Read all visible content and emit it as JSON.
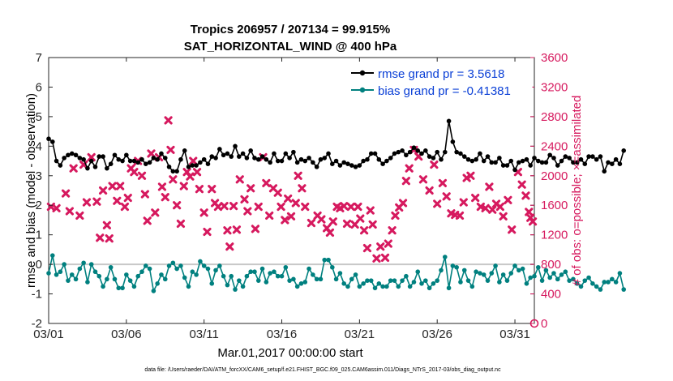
{
  "chart_data": {
    "type": "line",
    "title_line1": "Tropics 206957 / 207134 = 99.915%",
    "title_line2": "SAT_HORIZONTAL_WIND @ 400 hPa",
    "xlabel": "Mar.01,2017 00:00:00 start",
    "ylabel_left": "rmse and bias (model - observation)",
    "ylabel_right": "# of obs: o=possible; ×=assimilated",
    "footnote": "data file: /Users/raeder/DAI/ATM_forcXX/CAM6_setup/f.e21.FHIST_BGC.f09_025.CAM6assim.011/Diags_NTrS_2017-03/obs_diag_output.nc",
    "x_ticks": [
      "03/01",
      "03/06",
      "03/11",
      "03/16",
      "03/21",
      "03/26",
      "03/31"
    ],
    "x_tick_days": [
      0,
      5,
      10,
      15,
      20,
      25,
      30
    ],
    "xlim": [
      0,
      31.25
    ],
    "ylim_left": [
      -2,
      7
    ],
    "y_ticks_left": [
      "-2",
      "-1",
      "0",
      "1",
      "2",
      "3",
      "4",
      "5",
      "6",
      "7"
    ],
    "ylim_right": [
      0,
      3600
    ],
    "y_ticks_right": [
      "0",
      "400",
      "800",
      "1200",
      "1600",
      "2000",
      "2400",
      "2800",
      "3200",
      "3600"
    ],
    "colors": {
      "rmse": "#000000",
      "bias": "#00807f",
      "obs": "#d6195e",
      "legend_text": "#0a3fd6",
      "zero_line": "#c8c8c8"
    },
    "series": [
      {
        "name": "rmse grand pr = 3.5618",
        "axis": "left",
        "x_step": 0.25,
        "values": [
          4.25,
          4.15,
          3.5,
          3.35,
          3.6,
          3.7,
          3.75,
          3.7,
          3.6,
          3.55,
          3.25,
          3.5,
          3.3,
          3.65,
          3.65,
          3.25,
          3.4,
          3.7,
          3.55,
          3.5,
          3.7,
          3.5,
          3.5,
          3.45,
          3.55,
          3.4,
          3.45,
          3.6,
          3.55,
          3.75,
          3.6,
          3.3,
          3.15,
          3.15,
          3.55,
          3.85,
          3.3,
          3.35,
          3.35,
          3.45,
          3.55,
          3.4,
          3.65,
          3.6,
          3.9,
          3.7,
          3.75,
          3.65,
          4.0,
          3.65,
          3.75,
          3.6,
          3.85,
          3.6,
          3.55,
          3.65,
          3.55,
          3.45,
          3.75,
          3.5,
          3.5,
          3.75,
          3.6,
          3.8,
          3.45,
          3.55,
          3.5,
          3.6,
          3.45,
          3.3,
          3.55,
          3.6,
          3.75,
          3.4,
          3.5,
          3.35,
          3.45,
          3.4,
          3.35,
          3.3,
          3.35,
          3.5,
          3.55,
          3.75,
          3.75,
          3.55,
          3.4,
          3.5,
          3.6,
          3.75,
          3.8,
          3.85,
          3.7,
          3.8,
          3.95,
          3.85,
          3.75,
          3.85,
          3.65,
          3.6,
          3.8,
          3.55,
          3.8,
          4.85,
          4.15,
          3.8,
          3.75,
          3.65,
          3.55,
          3.5,
          3.55,
          3.75,
          3.5,
          3.65,
          3.45,
          3.45,
          3.6,
          3.35,
          3.35,
          3.5,
          3.2,
          3.45,
          3.5,
          3.55,
          3.35,
          3.6,
          3.5,
          3.45,
          3.45,
          3.7,
          3.6,
          3.35,
          3.5,
          3.65,
          3.6,
          3.45,
          3.45,
          3.55,
          3.4,
          3.65,
          3.65,
          3.55,
          3.65,
          3.15,
          3.45,
          3.4,
          3.55,
          3.4,
          3.85
        ]
      },
      {
        "name": "bias grand pr = -0.41381",
        "axis": "left",
        "x_step": 0.25,
        "values": [
          -0.3,
          0.3,
          -0.35,
          -0.25,
          0.0,
          -0.55,
          -0.35,
          -0.5,
          -0.15,
          0.05,
          -0.6,
          0.0,
          -0.25,
          -0.4,
          -0.75,
          -0.5,
          -0.1,
          -0.5,
          -0.8,
          -0.8,
          -0.35,
          -0.55,
          -0.75,
          -0.4,
          -0.25,
          -0.05,
          -0.15,
          -0.9,
          -0.65,
          -0.35,
          -0.5,
          -0.05,
          0.05,
          -0.15,
          -0.05,
          -0.45,
          -0.75,
          -0.25,
          -0.35,
          0.1,
          -0.05,
          -0.15,
          -0.65,
          -0.2,
          -0.05,
          -0.4,
          -0.7,
          -0.4,
          -0.85,
          -0.55,
          -0.75,
          -0.4,
          -0.25,
          -0.25,
          -0.55,
          -0.15,
          -0.6,
          -0.3,
          -0.25,
          -0.4,
          -0.4,
          -0.1,
          -0.55,
          -0.5,
          -0.75,
          -0.65,
          -0.6,
          -0.15,
          -0.35,
          -0.5,
          -0.5,
          0.15,
          0.15,
          -0.1,
          -0.5,
          -0.3,
          -0.65,
          -0.75,
          -0.5,
          -0.35,
          -0.75,
          -0.65,
          -0.55,
          -0.55,
          -0.8,
          -0.65,
          -0.75,
          -0.75,
          -0.55,
          -0.55,
          -0.75,
          -0.55,
          -0.4,
          -0.75,
          -0.6,
          -0.25,
          -0.65,
          -0.55,
          -0.8,
          -0.65,
          -0.55,
          -0.2,
          0.25,
          -0.8,
          -0.05,
          -0.1,
          -0.6,
          -0.2,
          -0.55,
          -0.75,
          -0.25,
          -0.3,
          -0.35,
          -0.55,
          -0.3,
          -0.05,
          -0.6,
          -0.35,
          -0.55,
          -0.3,
          -0.05,
          -0.2,
          -0.15,
          -0.65,
          -0.45,
          -0.4,
          -0.1,
          -0.55,
          -0.2,
          -0.45,
          -0.3,
          -0.5,
          -0.35,
          -0.25,
          -0.55,
          -0.5,
          -0.65,
          -0.75,
          -0.55,
          -0.45,
          -0.65,
          -0.75,
          -0.85,
          -0.6,
          -0.6,
          -0.5,
          -0.6,
          -0.3,
          -0.85
        ]
      },
      {
        "name": "obs assimilated",
        "axis": "right",
        "marker": "x",
        "points": [
          [
            0.15,
            1580
          ],
          [
            0.5,
            1560
          ],
          [
            1.1,
            1760
          ],
          [
            1.35,
            1520
          ],
          [
            1.6,
            2100
          ],
          [
            2.0,
            1460
          ],
          [
            2.25,
            2150
          ],
          [
            2.45,
            1640
          ],
          [
            2.75,
            2250
          ],
          [
            3.1,
            1650
          ],
          [
            3.3,
            1160
          ],
          [
            3.5,
            1800
          ],
          [
            3.75,
            1330
          ],
          [
            3.9,
            1150
          ],
          [
            4.1,
            1860
          ],
          [
            4.4,
            1660
          ],
          [
            4.6,
            1860
          ],
          [
            4.9,
            1580
          ],
          [
            5.1,
            1700
          ],
          [
            5.3,
            2100
          ],
          [
            5.5,
            2050
          ],
          [
            5.75,
            2200
          ],
          [
            6.0,
            2000
          ],
          [
            6.2,
            1750
          ],
          [
            6.35,
            1390
          ],
          [
            6.6,
            2300
          ],
          [
            6.85,
            1500
          ],
          [
            7.1,
            2250
          ],
          [
            7.3,
            1850
          ],
          [
            7.5,
            1710
          ],
          [
            7.7,
            2750
          ],
          [
            7.85,
            2350
          ],
          [
            8.0,
            1950
          ],
          [
            8.25,
            1600
          ],
          [
            8.5,
            1350
          ],
          [
            8.7,
            1860
          ],
          [
            8.9,
            2050
          ],
          [
            9.1,
            1990
          ],
          [
            9.3,
            2200
          ],
          [
            9.55,
            2050
          ],
          [
            9.7,
            1820
          ],
          [
            10.0,
            1500
          ],
          [
            10.2,
            1240
          ],
          [
            10.5,
            1820
          ],
          [
            10.7,
            1630
          ],
          [
            10.9,
            1580
          ],
          [
            11.3,
            1590
          ],
          [
            11.5,
            1260
          ],
          [
            11.65,
            1040
          ],
          [
            11.9,
            1590
          ],
          [
            12.1,
            1270
          ],
          [
            12.3,
            1950
          ],
          [
            12.6,
            1680
          ],
          [
            12.8,
            1520
          ],
          [
            13.0,
            1830
          ],
          [
            13.3,
            1280
          ],
          [
            13.5,
            1580
          ],
          [
            13.8,
            2250
          ],
          [
            14.0,
            1900
          ],
          [
            14.2,
            1460
          ],
          [
            14.45,
            1830
          ],
          [
            14.75,
            1770
          ],
          [
            14.95,
            1580
          ],
          [
            15.2,
            1400
          ],
          [
            15.4,
            1690
          ],
          [
            15.6,
            1450
          ],
          [
            15.9,
            1630
          ],
          [
            16.05,
            2000
          ],
          [
            16.3,
            1830
          ],
          [
            16.5,
            1580
          ],
          [
            16.9,
            1360
          ],
          [
            17.3,
            1460
          ],
          [
            17.55,
            1410
          ],
          [
            17.9,
            1290
          ],
          [
            18.1,
            1230
          ],
          [
            18.3,
            1380
          ],
          [
            18.55,
            1580
          ],
          [
            18.75,
            1560
          ],
          [
            19.0,
            1590
          ],
          [
            19.2,
            1350
          ],
          [
            19.45,
            1580
          ],
          [
            19.7,
            1340
          ],
          [
            19.9,
            1580
          ],
          [
            20.05,
            1420
          ],
          [
            20.3,
            1260
          ],
          [
            20.5,
            1020
          ],
          [
            20.7,
            1530
          ],
          [
            20.85,
            1340
          ],
          [
            21.1,
            880
          ],
          [
            21.35,
            1040
          ],
          [
            21.65,
            890
          ],
          [
            21.85,
            1080
          ],
          [
            22.1,
            1260
          ],
          [
            22.3,
            1460
          ],
          [
            22.55,
            1570
          ],
          [
            22.8,
            1630
          ],
          [
            23.0,
            1930
          ],
          [
            23.2,
            2100
          ],
          [
            23.5,
            2350
          ],
          [
            23.8,
            2260
          ],
          [
            24.1,
            1950
          ],
          [
            24.5,
            1800
          ],
          [
            24.8,
            2150
          ],
          [
            25.0,
            1620
          ],
          [
            25.35,
            1900
          ],
          [
            25.6,
            1720
          ],
          [
            25.9,
            1490
          ],
          [
            26.15,
            1470
          ],
          [
            26.45,
            1460
          ],
          [
            26.7,
            1640
          ],
          [
            26.9,
            1970
          ],
          [
            27.15,
            2000
          ],
          [
            27.45,
            1700
          ],
          [
            27.8,
            1580
          ],
          [
            28.1,
            1560
          ],
          [
            28.35,
            1850
          ],
          [
            28.55,
            1540
          ],
          [
            28.8,
            1620
          ],
          [
            29.05,
            1580
          ],
          [
            29.25,
            1450
          ],
          [
            29.55,
            1670
          ],
          [
            29.8,
            1270
          ],
          [
            30.2,
            2050
          ],
          [
            30.45,
            1880
          ],
          [
            30.7,
            1730
          ],
          [
            30.9,
            1510
          ],
          [
            31.0,
            1430
          ],
          [
            31.15,
            1380
          ]
        ]
      },
      {
        "name": "obs possible",
        "axis": "right",
        "marker": "o",
        "points": [
          [
            31.25,
            0
          ]
        ]
      }
    ],
    "zero_line": 0
  }
}
